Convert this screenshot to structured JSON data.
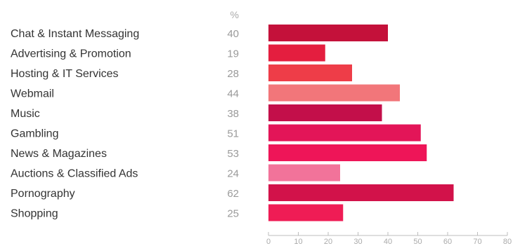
{
  "chart_data": {
    "type": "bar",
    "orientation": "horizontal",
    "unit_label": "%",
    "categories": [
      "Chat & Instant Messaging",
      "Advertising & Promotion",
      "Hosting & IT Services",
      "Webmail",
      "Music",
      "Gambling",
      "News & Magazines",
      "Auctions & Classified Ads",
      "Pornography",
      "Shopping"
    ],
    "values": [
      40,
      19,
      28,
      44,
      38,
      51,
      53,
      24,
      62,
      25
    ],
    "value_labels": [
      "40",
      "19",
      "28",
      "44",
      "38",
      "51",
      "53",
      "24",
      "62",
      "25"
    ],
    "bar_colors": [
      "#c4113a",
      "#e41e3f",
      "#ee3d48",
      "#f2767a",
      "#c30f4a",
      "#e31558",
      "#ee1558",
      "#f2739a",
      "#d2124a",
      "#ef1c55"
    ],
    "xlim": [
      0,
      80
    ],
    "x_ticks": [
      "0",
      "10",
      "20",
      "30",
      "40",
      "50",
      "60",
      "70",
      "80"
    ],
    "grid": false,
    "legend": "none"
  }
}
